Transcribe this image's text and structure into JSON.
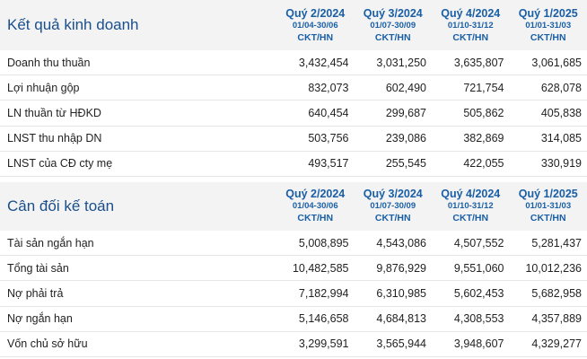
{
  "sections": [
    {
      "title": "Kết quả kinh doanh",
      "columns": [
        {
          "quarter": "Quý 2/2024",
          "range": "01/04-30/06",
          "unit": "CKT/HN"
        },
        {
          "quarter": "Quý 3/2024",
          "range": "01/07-30/09",
          "unit": "CKT/HN"
        },
        {
          "quarter": "Quý 4/2024",
          "range": "01/10-31/12",
          "unit": "CKT/HN"
        },
        {
          "quarter": "Quý 1/2025",
          "range": "01/01-31/03",
          "unit": "CKT/HN"
        }
      ],
      "rows": [
        {
          "label": "Doanh thu thuần",
          "values": [
            "3,432,454",
            "3,031,250",
            "3,635,807",
            "3,061,685"
          ]
        },
        {
          "label": "Lợi nhuận gộp",
          "values": [
            "832,073",
            "602,490",
            "721,754",
            "628,078"
          ]
        },
        {
          "label": "LN thuần từ HĐKD",
          "values": [
            "640,454",
            "299,687",
            "505,862",
            "405,838"
          ]
        },
        {
          "label": "LNST thu nhập DN",
          "values": [
            "503,756",
            "239,086",
            "382,869",
            "314,085"
          ]
        },
        {
          "label": "LNST của CĐ cty mẹ",
          "values": [
            "493,517",
            "255,545",
            "422,055",
            "330,919"
          ]
        }
      ]
    },
    {
      "title": "Cân đối kế toán",
      "columns": [
        {
          "quarter": "Quý 2/2024",
          "range": "01/04-30/06",
          "unit": "CKT/HN"
        },
        {
          "quarter": "Quý 3/2024",
          "range": "01/07-30/09",
          "unit": "CKT/HN"
        },
        {
          "quarter": "Quý 4/2024",
          "range": "01/10-31/12",
          "unit": "CKT/HN"
        },
        {
          "quarter": "Quý 1/2025",
          "range": "01/01-31/03",
          "unit": "CKT/HN"
        }
      ],
      "rows": [
        {
          "label": "Tài sản ngắn hạn",
          "values": [
            "5,008,895",
            "4,543,086",
            "4,507,552",
            "5,281,437"
          ]
        },
        {
          "label": "Tổng tài sản",
          "values": [
            "10,482,585",
            "9,876,929",
            "9,551,060",
            "10,012,236"
          ]
        },
        {
          "label": "Nợ phải trả",
          "values": [
            "7,182,994",
            "6,310,985",
            "5,602,453",
            "5,682,958"
          ]
        },
        {
          "label": "Nợ ngắn hạn",
          "values": [
            "5,146,658",
            "4,684,813",
            "4,308,553",
            "4,357,889"
          ]
        },
        {
          "label": "Vốn chủ sở hữu",
          "values": [
            "3,299,591",
            "3,565,944",
            "3,948,607",
            "4,329,277"
          ]
        }
      ]
    }
  ]
}
